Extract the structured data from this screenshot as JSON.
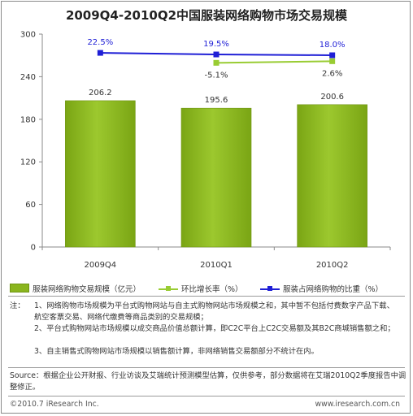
{
  "title": "2009Q4-2010Q2中国服装网络购物市场交易规模",
  "chart_data": {
    "type": "bar",
    "categories": [
      "2009Q4",
      "2010Q1",
      "2010Q2"
    ],
    "y_ticks": [
      "0",
      "60",
      "120",
      "180",
      "240",
      "300"
    ],
    "ylim": [
      0,
      300
    ],
    "grid": false,
    "series": [
      {
        "name": "服装网络购物交易规模（亿元）",
        "type": "bar",
        "color": "#8ab51e",
        "values": [
          206.2,
          195.6,
          200.6
        ],
        "labels": [
          "206.2",
          "195.6",
          "200.6"
        ]
      },
      {
        "name": "环比增长率（%）",
        "type": "line",
        "color": "#99cc33",
        "values": [
          null,
          -5.1,
          2.6
        ],
        "labels": [
          "",
          "-5.1%",
          "2.6%"
        ]
      },
      {
        "name": "服装占网络购物的比重（%）",
        "type": "line",
        "color": "#1f1fd6",
        "values": [
          22.5,
          19.5,
          18.0
        ],
        "labels": [
          "22.5%",
          "19.5%",
          "18.0%"
        ]
      }
    ]
  },
  "notes": {
    "label": "注：",
    "items": [
      "1、网络购物市场规模为平台式购物网站与自主式购物网站市场规模之和，其中暂不包括付费数字产品下载、航空客票交易、网络代缴费等商品类别的交易规模；",
      "2、平台式购物网站市场规模以成交商品价值总额计算，即C2C平台上C2C交易额及其B2C商城销售额之和；",
      "3、自主销售式购物网站市场规模以销售额计算，非网络销售交易额部分不统计在内。"
    ]
  },
  "source": "Source：根据企业公开财报、行业访谈及艾瑞统计预测模型估算，仅供参考，部分数据将在艾瑞2010Q2季度报告中调整修正。",
  "footer": {
    "copyright": "©2010.7 iResearch Inc.",
    "website": "www.iresearch.com.cn"
  }
}
